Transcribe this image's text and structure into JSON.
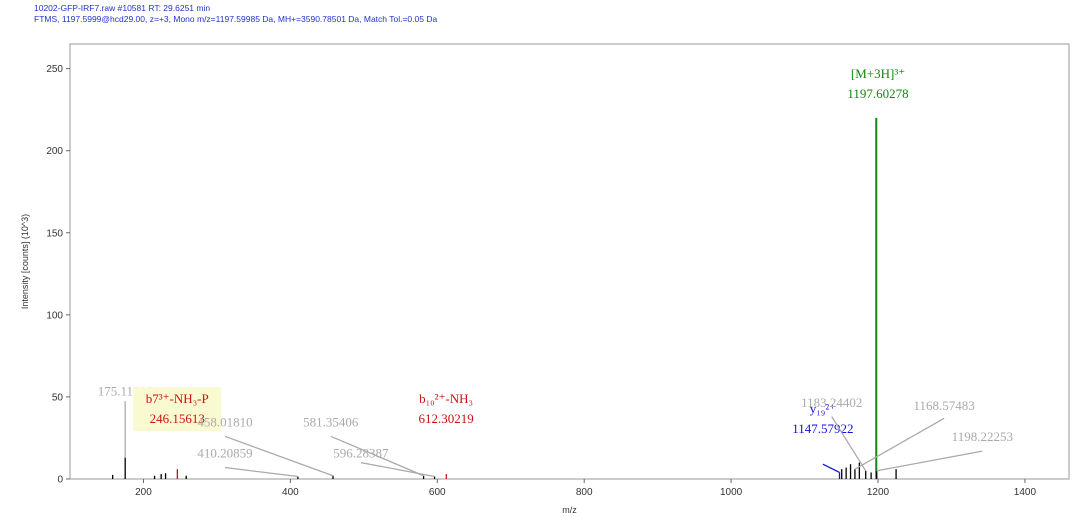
{
  "header": {
    "line1": "10202-GFP-IRF7.raw  #10581  RT: 29.6251 min",
    "line2": "FTMS, 1197.5999@hcd29.00, z=+3, Mono m/z=1197.59985 Da, MH+=3590.78501 Da, Match Tol.=0.05 Da"
  },
  "chart_data": {
    "type": "bar",
    "xlabel": "m/z",
    "ylabel": "Intensity [counts] (10^3)",
    "xlim": [
      100,
      1460
    ],
    "ylim": [
      0,
      265
    ],
    "xticks": [
      200,
      400,
      600,
      800,
      1000,
      1200,
      1400
    ],
    "yticks": [
      0,
      50,
      100,
      150,
      200,
      250
    ],
    "grid": false,
    "colors": {
      "matched_b": "#cc1111",
      "matched_y": "#1111dd",
      "precursor": "#118811",
      "unmatched": "#aaaaaa",
      "peak": "#000000",
      "highlight_bg": "#fafad0"
    },
    "peaks": [
      {
        "mz": 158.1,
        "intensity": 2.5
      },
      {
        "mz": 175.11906,
        "intensity": 13
      },
      {
        "mz": 215.1,
        "intensity": 2
      },
      {
        "mz": 224.1,
        "intensity": 3
      },
      {
        "mz": 230.1,
        "intensity": 3.5
      },
      {
        "mz": 246.15613,
        "intensity": 6,
        "class": "matched_b"
      },
      {
        "mz": 258.2,
        "intensity": 2
      },
      {
        "mz": 410.20859,
        "intensity": 1.5
      },
      {
        "mz": 458.0181,
        "intensity": 2
      },
      {
        "mz": 581.35406,
        "intensity": 2
      },
      {
        "mz": 596.28387,
        "intensity": 1.5
      },
      {
        "mz": 612.30219,
        "intensity": 3,
        "class": "matched_b"
      },
      {
        "mz": 1147.57922,
        "intensity": 4,
        "class": "matched_y"
      },
      {
        "mz": 1150.6,
        "intensity": 6
      },
      {
        "mz": 1156.6,
        "intensity": 7
      },
      {
        "mz": 1162.6,
        "intensity": 9
      },
      {
        "mz": 1168.57483,
        "intensity": 6
      },
      {
        "mz": 1174.6,
        "intensity": 10
      },
      {
        "mz": 1183.24402,
        "intensity": 5
      },
      {
        "mz": 1190.6,
        "intensity": 4
      },
      {
        "mz": 1197.60278,
        "intensity": 220,
        "class": "precursor"
      },
      {
        "mz": 1198.22253,
        "intensity": 5
      },
      {
        "mz": 1224.6,
        "intensity": 6
      }
    ],
    "annotations": [
      {
        "lines": [
          "175.11906"
        ],
        "color": "#aaaaaa",
        "peak_mz": 175.11906,
        "peak_y": 13,
        "label_mz": 175,
        "label_y": 51,
        "style": "vertical"
      },
      {
        "lines": [
          "b7³⁺-NH₃-P",
          "246.15613"
        ],
        "color": "#cc1111",
        "highlight": true,
        "peak_mz": 246.15613,
        "label_mz": 246,
        "label_y": 34
      },
      {
        "lines": [
          "458.01810"
        ],
        "color": "#aaaaaa",
        "peak_mz": 458.0181,
        "peak_y": 2,
        "label_mz": 311,
        "label_y": 32,
        "connector_from_y": 26
      },
      {
        "lines": [
          "410.20859"
        ],
        "color": "#aaaaaa",
        "peak_mz": 410.20859,
        "peak_y": 1.5,
        "label_mz": 311,
        "label_y": 13,
        "connector_from_y": 7
      },
      {
        "lines": [
          "581.35406"
        ],
        "color": "#aaaaaa",
        "peak_mz": 581.35406,
        "peak_y": 2,
        "label_mz": 455,
        "label_y": 32,
        "connector_from_y": 26
      },
      {
        "lines": [
          "596.28387"
        ],
        "color": "#aaaaaa",
        "peak_mz": 596.28387,
        "peak_y": 1.5,
        "label_mz": 496,
        "label_y": 13,
        "connector_from_y": 10
      },
      {
        "lines": [
          "b₁₀²⁺-NH₃",
          "612.30219"
        ],
        "color": "#cc1111",
        "peak_mz": 612.30219,
        "label_mz": 612,
        "label_y": 34
      },
      {
        "lines": [
          "y₁₉²⁺",
          "1147.57922"
        ],
        "color": "#1111dd",
        "peak_mz": 1147.57922,
        "peak_y": 4,
        "label_mz": 1125,
        "label_y": 28,
        "connector_from_y": 9
      },
      {
        "lines": [
          "1183.24402"
        ],
        "color": "#aaaaaa",
        "peak_mz": 1183.24402,
        "peak_y": 5,
        "label_mz": 1137,
        "label_y": 44,
        "connector_from_y": 38
      },
      {
        "lines": [
          "1168.57483"
        ],
        "color": "#aaaaaa",
        "peak_mz": 1168.57483,
        "peak_y": 6,
        "label_mz": 1290,
        "label_y": 42,
        "connector_from_y": 37
      },
      {
        "lines": [
          "1198.22253"
        ],
        "color": "#aaaaaa",
        "peak_mz": 1198.22253,
        "peak_y": 5,
        "label_mz": 1342,
        "label_y": 23,
        "connector_from_y": 17
      },
      {
        "lines": [
          "[M+3H]³⁺",
          "1197.60278"
        ],
        "color": "#118811",
        "peak_mz": 1197.60278,
        "label_mz": 1200,
        "label_y": 232
      }
    ]
  }
}
